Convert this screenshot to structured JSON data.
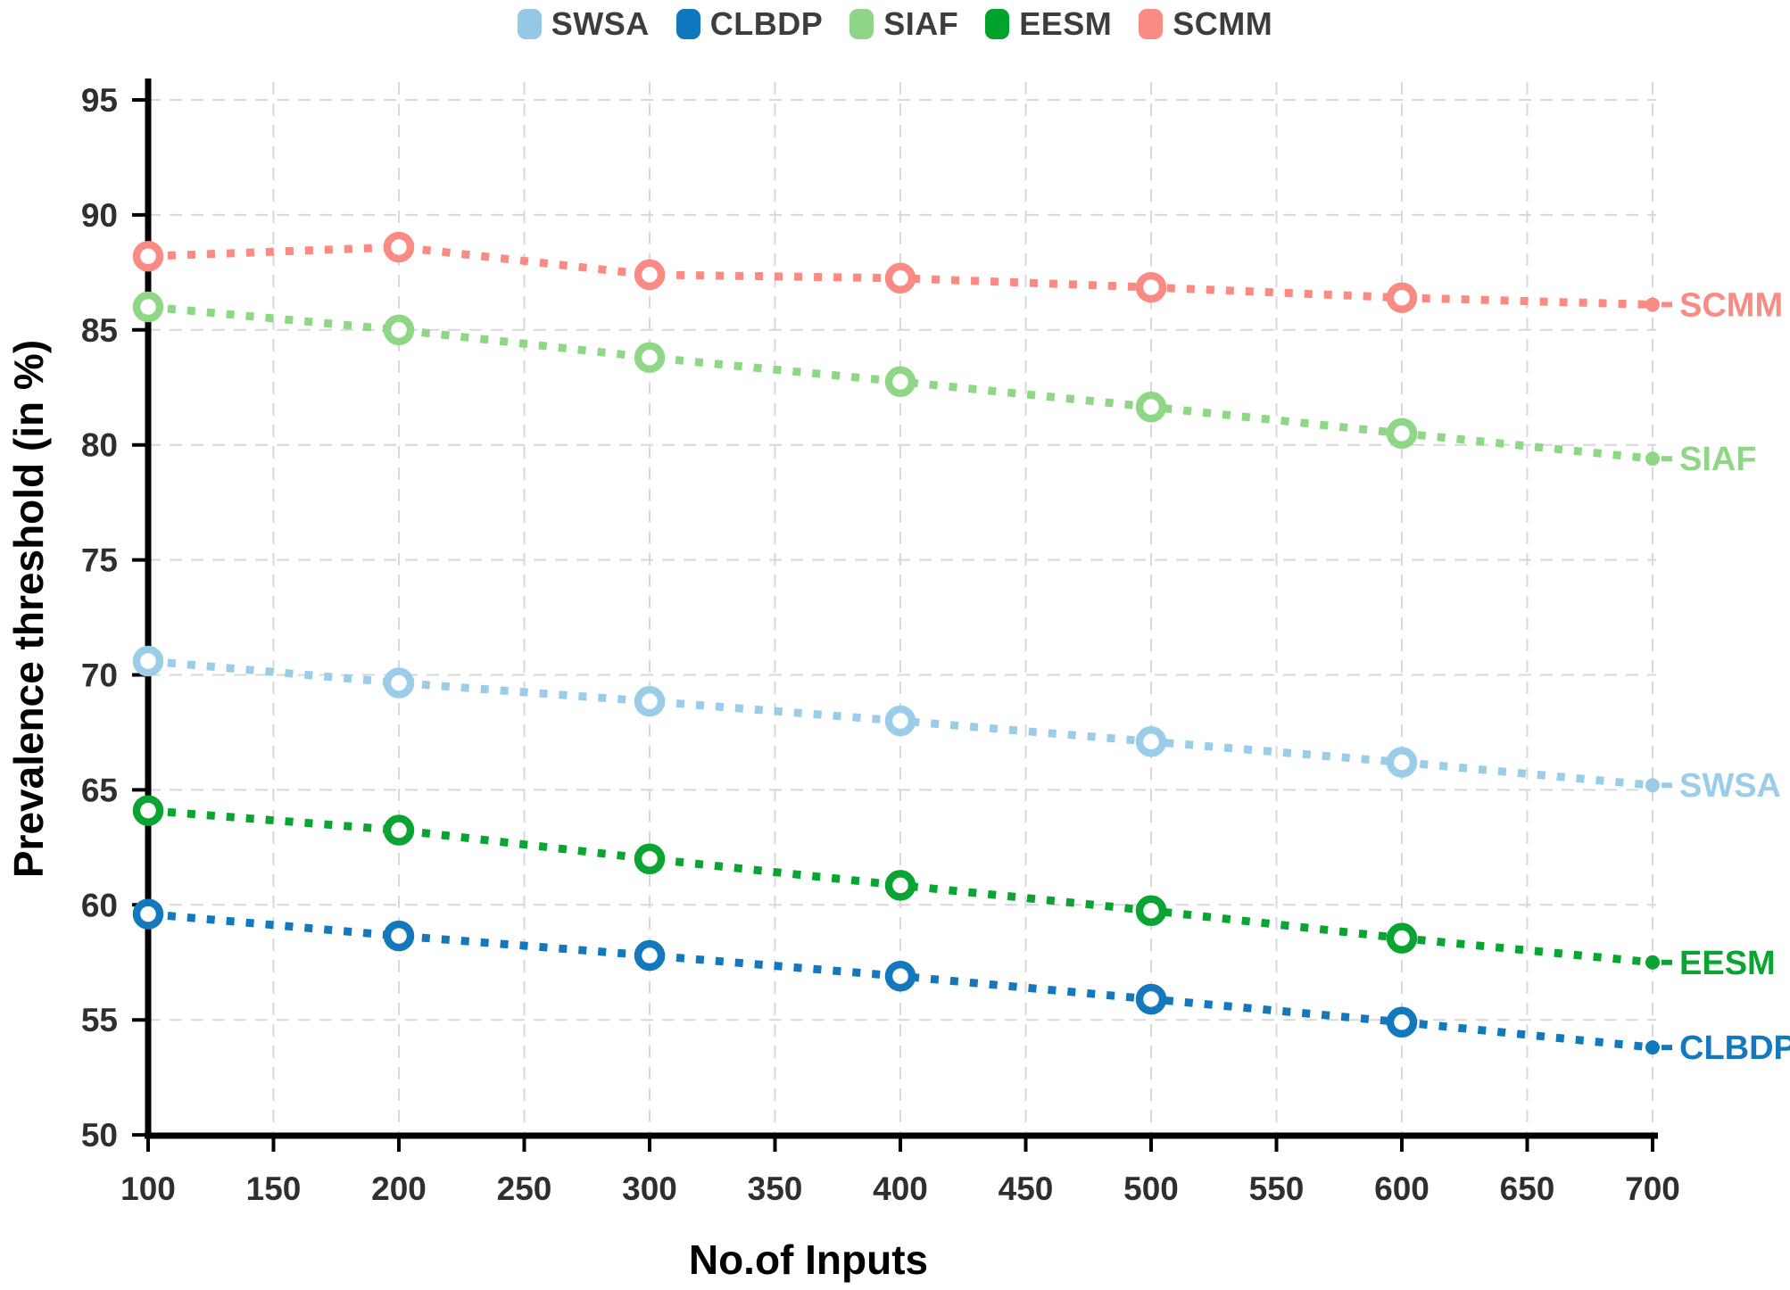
{
  "figure": {
    "kind": "line-chart-figure"
  },
  "legend": {
    "items": [
      {
        "label": "SWSA",
        "color": "#96C7E4"
      },
      {
        "label": "CLBDP",
        "color": "#0F77BD"
      },
      {
        "label": "SIAF",
        "color": "#8FD588"
      },
      {
        "label": "EESM",
        "color": "#01A32C"
      },
      {
        "label": "SCMM",
        "color": "#F98B84"
      }
    ]
  },
  "axes": {
    "x_label": "No.of Inputs",
    "y_label": "Prevalence threshold (in %)",
    "x_ticks": [
      100,
      150,
      200,
      250,
      300,
      350,
      400,
      450,
      500,
      550,
      600,
      650,
      700
    ],
    "y_ticks": [
      50,
      55,
      60,
      65,
      70,
      75,
      80,
      85,
      90,
      95
    ]
  },
  "chart_data": {
    "type": "line",
    "line_style": "dotted",
    "marker": "open-ring",
    "grid": true,
    "legend_position": "top",
    "xlabel": "No.of Inputs",
    "ylabel": "Prevalence threshold (in %)",
    "xlim": [
      100,
      700
    ],
    "ylim": [
      50,
      95
    ],
    "x": [
      100,
      200,
      300,
      400,
      500,
      600,
      700
    ],
    "marker_x_max": 600,
    "series": [
      {
        "name": "SWSA",
        "color": "#9BCDE8",
        "values": [
          70.6,
          69.65,
          68.85,
          68.0,
          67.1,
          66.2,
          65.2
        ]
      },
      {
        "name": "CLBDP",
        "color": "#1478BC",
        "values": [
          59.6,
          58.65,
          57.8,
          56.9,
          55.9,
          54.9,
          53.8
        ]
      },
      {
        "name": "SIAF",
        "color": "#90D687",
        "values": [
          86.0,
          85.0,
          83.8,
          82.75,
          81.65,
          80.5,
          79.4
        ]
      },
      {
        "name": "EESM",
        "color": "#09A432",
        "values": [
          64.1,
          63.25,
          62.0,
          60.85,
          59.75,
          58.55,
          57.5
        ]
      },
      {
        "name": "SCMM",
        "color": "#F98B84",
        "values": [
          88.2,
          88.6,
          87.4,
          87.25,
          86.85,
          86.4,
          86.1
        ]
      }
    ]
  }
}
